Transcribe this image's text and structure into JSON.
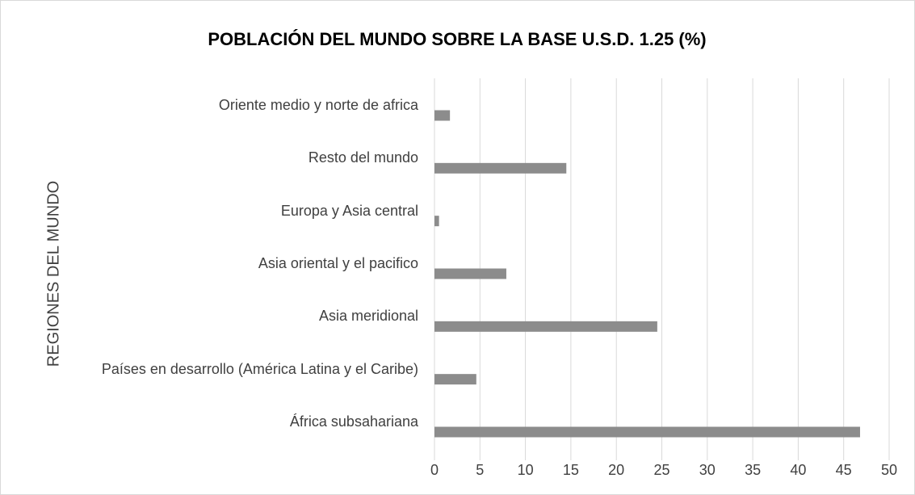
{
  "chart_data": {
    "type": "barh",
    "title": "POBLACIÓN DEL MUNDO SOBRE LA BASE U.S.D. 1.25 (%)",
    "y_label": "REGIONES DEL MUNDO",
    "categories": [
      "Oriente medio y norte de africa",
      "Resto del mundo",
      "Europa y Asia central",
      "Asia oriental y el pacifico",
      "Asia meridional",
      "Países en desarrollo (América Latina y el Caribe)",
      "África subsahariana"
    ],
    "values": [
      1.7,
      14.5,
      0.5,
      7.9,
      24.5,
      4.6,
      46.8
    ],
    "color": "#8c8c8c",
    "xlim": [
      0,
      50
    ],
    "xticks": [
      0,
      5,
      10,
      15,
      20,
      25,
      30,
      35,
      40,
      45,
      50
    ],
    "grid": true
  }
}
